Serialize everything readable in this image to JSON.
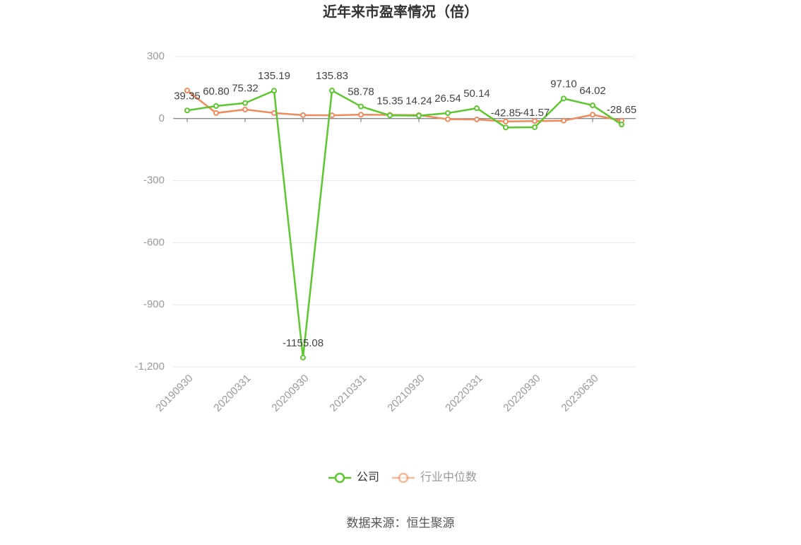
{
  "chart_data": {
    "type": "line",
    "title": "近年来市盈率情况（倍）",
    "source": "数据来源：恒生聚源",
    "categories": [
      "20190930",
      null,
      "20200331",
      null,
      "20200930",
      null,
      "20210331",
      null,
      "20210930",
      null,
      "20220331",
      null,
      "20220930",
      null,
      "20230630",
      null
    ],
    "series": [
      {
        "name": "公司",
        "color": "#5cc72e",
        "values": [
          39.35,
          60.8,
          75.32,
          135.19,
          -1155.08,
          135.83,
          58.78,
          15.35,
          14.24,
          26.54,
          50.14,
          -42.85,
          -41.57,
          97.1,
          64.02,
          -28.65
        ],
        "value_labels": [
          "39.35",
          "60.80",
          "75.32",
          "135.19",
          "-1155.08",
          "135.83",
          "58.78",
          "15.35",
          "14.24",
          "26.54",
          "50.14",
          "-42.85",
          "-41.57",
          "97.10",
          "64.02",
          "-28.65"
        ]
      },
      {
        "name": "行业中位数",
        "color": "#f08a5d",
        "values": [
          136,
          27,
          44,
          27,
          17,
          16,
          19,
          18,
          17,
          -3,
          -4,
          -14,
          -12,
          -10,
          19,
          -10
        ]
      }
    ],
    "ylim": [
      -1200,
      300
    ],
    "yticks": [
      300,
      0,
      -300,
      -600,
      -900,
      {
        "value": -1200,
        "label": "-1,200"
      }
    ],
    "grid": true,
    "legend": "bottom"
  }
}
